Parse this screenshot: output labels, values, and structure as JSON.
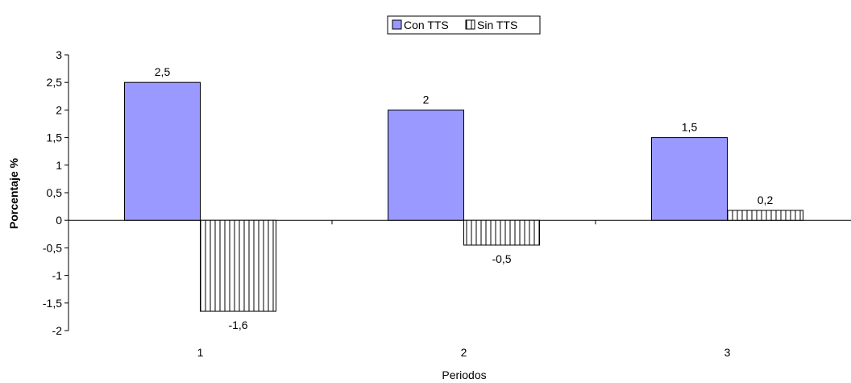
{
  "chart_data": {
    "type": "bar",
    "categories": [
      "1",
      "2",
      "3"
    ],
    "series": [
      {
        "name": "Con TTS",
        "values": [
          2.5,
          2,
          1.5
        ],
        "labels": [
          "2,5",
          "2",
          "1,5"
        ],
        "color": "#9999ff",
        "pattern": "solid"
      },
      {
        "name": "Sin TTS",
        "values": [
          -1.65,
          -0.45,
          0.18
        ],
        "labels": [
          "-1,6",
          "-0,5",
          "0,2"
        ],
        "color": "#ffffff",
        "pattern": "vertical-stripes"
      }
    ],
    "xlabel": "Periodos",
    "ylabel": "Porcentaje %",
    "ylim": [
      -2,
      3
    ],
    "yticks": [
      3,
      2.5,
      2,
      1.5,
      1,
      0.5,
      0,
      -0.5,
      -1,
      -1.5,
      -2
    ],
    "ytick_labels": [
      "3",
      "2,5",
      "2",
      "1,5",
      "1",
      "0,5",
      "0",
      "-0,5",
      "-1",
      "-1,5",
      "-2"
    ],
    "legend_position": "top-center",
    "grid": false
  }
}
